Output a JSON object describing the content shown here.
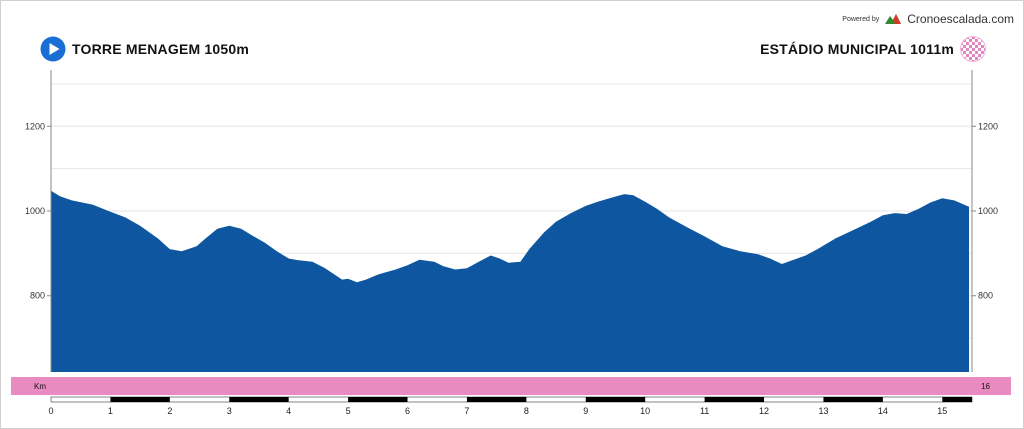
{
  "branding": {
    "powered_by": "Powered by",
    "name": "Cronoescalada.com"
  },
  "start": {
    "label": "TORRE MENAGEM 1050m",
    "icon": "play-circle-icon",
    "color": "#1a6fd4"
  },
  "finish": {
    "label": "ESTÁDIO MUNICIPAL 1011m",
    "icon": "checkered-flag-icon",
    "color": "#e9a0c8"
  },
  "colors": {
    "profile_fill": "#0e57a0",
    "km_band": "#e98ac0"
  },
  "chart_data": {
    "type": "area",
    "title": "",
    "xlabel": "Km",
    "ylabel": "",
    "ylim": [
      620,
      1380
    ],
    "xlim": [
      0,
      15.5
    ],
    "yticks": [
      800,
      1000,
      1200
    ],
    "xticks": [
      0,
      1,
      2,
      3,
      4,
      5,
      6,
      7,
      8,
      9,
      10,
      11,
      12,
      13,
      14,
      15
    ],
    "band_label_left": "Km",
    "band_label_right": "16",
    "grid": true,
    "distance_km": [
      0,
      0.15,
      0.35,
      0.7,
      1.0,
      1.25,
      1.5,
      1.8,
      2.0,
      2.2,
      2.45,
      2.6,
      2.8,
      3.0,
      3.2,
      3.35,
      3.6,
      3.8,
      4.0,
      4.15,
      4.4,
      4.6,
      4.9,
      5.0,
      5.15,
      5.3,
      5.5,
      5.8,
      6.0,
      6.2,
      6.45,
      6.6,
      6.8,
      7.0,
      7.2,
      7.4,
      7.55,
      7.7,
      7.9,
      8.05,
      8.3,
      8.5,
      8.75,
      9.0,
      9.2,
      9.45,
      9.65,
      9.8,
      10.0,
      10.2,
      10.4,
      10.7,
      11.0,
      11.3,
      11.6,
      11.9,
      12.1,
      12.3,
      12.5,
      12.7,
      12.9,
      13.2,
      13.5,
      13.8,
      14.0,
      14.2,
      14.4,
      14.6,
      14.8,
      15.0,
      15.2,
      15.45
    ],
    "elevation_m": [
      1048,
      1035,
      1025,
      1015,
      998,
      985,
      965,
      935,
      910,
      905,
      917,
      935,
      958,
      965,
      958,
      945,
      925,
      905,
      888,
      884,
      880,
      866,
      838,
      840,
      832,
      838,
      850,
      862,
      872,
      885,
      880,
      870,
      862,
      865,
      880,
      895,
      888,
      878,
      880,
      910,
      950,
      975,
      995,
      1012,
      1022,
      1032,
      1040,
      1037,
      1022,
      1005,
      985,
      962,
      940,
      917,
      905,
      898,
      888,
      875,
      885,
      895,
      910,
      935,
      955,
      975,
      990,
      995,
      993,
      1005,
      1020,
      1030,
      1025,
      1010
    ]
  }
}
